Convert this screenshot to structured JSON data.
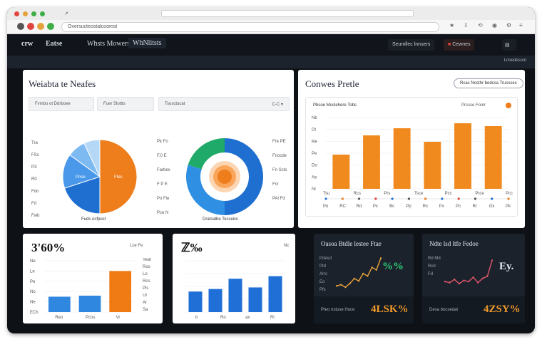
{
  "browser": {
    "url": "Oversucteostalcoomst",
    "colors": {
      "red": "#e0443e",
      "amber": "#e6a23c",
      "green": "#3fae48"
    }
  },
  "header": {
    "logo": "crw",
    "tabs": [
      "Eatse",
      "Whsts Mowers",
      "WhNlitsts"
    ],
    "right_button_1": "Seumllec lnnsers",
    "right_button_2": "Cewnes",
    "sub_tag": "Lnoedesoot"
  },
  "panel1": {
    "title": "Weiabta te Neafes",
    "filters": [
      "Fvmbo ot Ddrboee",
      "Fuer Slottts",
      "Tsusctucat"
    ],
    "filter_suffix": "C-C ▾",
    "pie_caption": "Fuds ocfpoct",
    "pie_left_labels": [
      "Tra",
      "FSs",
      "P3",
      "R0",
      "Fdo",
      "Fd",
      "Fwb"
    ],
    "pie_slice_label_blue": "Pose",
    "pie_slice_label_orange": "Ftes",
    "donut_left_labels": [
      "Pk Fo",
      "F.0 E",
      "Farbes",
      "F P E",
      "Po Fie",
      "Pce N"
    ],
    "donut_right_labels": [
      "Fre PE",
      "Fnocde",
      "Fn Ssts",
      "Fcr",
      "PAl Fd"
    ],
    "donut_caption": "Dratsalbe Tessuire"
  },
  "panel2": {
    "title": "Conwes Pretle",
    "button": "Rcas Nosthr bedcsa Trusssec",
    "card_title": "Pbsoe Moslehere Tobs",
    "card_meta": "Prssse Fomr",
    "y_labels": [
      "Nb",
      "Dt",
      "Re",
      "Pe",
      "Do",
      "Ae",
      "Ni"
    ],
    "x_labels": [
      "Tsu",
      "Rcs",
      "Prs",
      "Tsce",
      "Pcc",
      "Prce",
      "Pcci"
    ],
    "axis_labels": [
      "Po",
      "RC",
      "Rd",
      "Px",
      "Bc",
      "Pp",
      "Rx",
      "Px",
      "Pc",
      "Rt",
      "Ox",
      "Pk"
    ]
  },
  "kpi1": {
    "value": "3'60%",
    "meta": "Lce Fe",
    "y_labels": [
      "Ne",
      "Le",
      "Pe",
      "No",
      "Ne",
      "ECh"
    ],
    "x_labels": [
      "Reo",
      "Pcos",
      "Vr"
    ],
    "right_labels": [
      "Yeaf",
      "Ros",
      "Lo",
      "Rcs",
      "Pls",
      "Ur",
      "Ar",
      "Sa"
    ]
  },
  "kpi2": {
    "value": "ℤ‰",
    "meta": "Nc",
    "x_labels": [
      "b",
      "Ro",
      "ax",
      "Rl"
    ]
  },
  "dark1": {
    "title": "Oasoa Btdle lestee Ftae",
    "left_labels": [
      "Pdesd",
      "Ptd",
      "Arrc",
      "Eo",
      "Pfs"
    ],
    "badge": "%%",
    "stat_label": "Pteo nstuse Hoce",
    "stat_value": "4LSK%"
  },
  "dark2": {
    "title": "Ndte lsd ltfe Fedoe",
    "left_labels": [
      "Rd Md",
      "Rcd",
      "Fd"
    ],
    "badge": "Ey.",
    "stat_label": "Desa bocsedat",
    "stat_value": "4ZSY%"
  },
  "chart_data": [
    {
      "type": "pie",
      "values": [
        50,
        20,
        15,
        8,
        7
      ],
      "colors": [
        "#ee7d1c",
        "#1f6fd1",
        "#4a98ea",
        "#7dbaf2",
        "#b6d8f7"
      ]
    },
    {
      "type": "pie",
      "values": [
        50,
        30,
        20
      ],
      "colors": [
        "#1f6fd1",
        "#2f8fe3",
        "#1faa6a"
      ]
    },
    {
      "type": "bar",
      "values": [
        48,
        75,
        85,
        66,
        92,
        88
      ],
      "ylim": [
        0,
        100
      ],
      "color": "#f08a1f"
    },
    {
      "type": "bar",
      "values": [
        30,
        32,
        80
      ],
      "colors": [
        "#2f87e0",
        "#2f87e0",
        "#f07a13"
      ],
      "ylim": [
        0,
        100
      ]
    },
    {
      "type": "bar",
      "values": [
        40,
        45,
        65,
        48,
        70
      ],
      "ylim": [
        0,
        100
      ],
      "color": "#1f6fd6"
    },
    {
      "type": "line",
      "values": [
        10,
        12,
        8,
        14,
        22,
        18,
        30,
        26,
        40,
        36,
        55
      ],
      "ylim": [
        0,
        60
      ],
      "color": "#e8a23b"
    },
    {
      "type": "line",
      "values": [
        20,
        18,
        24,
        16,
        22,
        20,
        28,
        18,
        26,
        30,
        60
      ],
      "ylim": [
        0,
        70
      ],
      "color": "#e2566b"
    }
  ]
}
